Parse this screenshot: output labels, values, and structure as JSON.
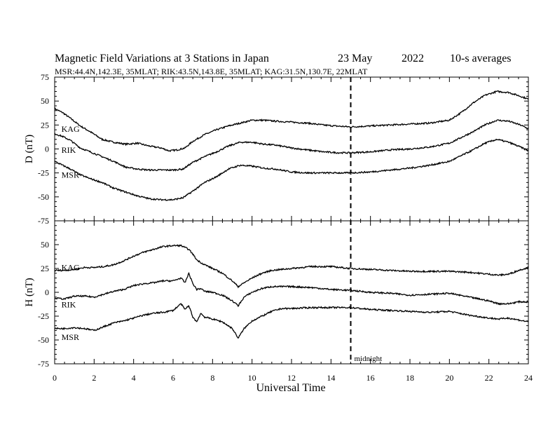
{
  "chart_data": {
    "type": "line",
    "title": "Magnetic Field Variations at 3 Stations in Japan",
    "date": "23 May",
    "year": "2022",
    "averaging": "10-s averages",
    "subtitle": "MSR:44.4N,142.3E, 35MLAT;  RIK:43.5N,143.8E, 35MLAT;  KAG:31.5N,130.7E, 22MLAT",
    "xlabel": "Universal Time",
    "xlim": [
      0,
      24
    ],
    "xticks": [
      0,
      2,
      4,
      6,
      8,
      10,
      12,
      14,
      16,
      18,
      20,
      22,
      24
    ],
    "midnight": {
      "x": 15,
      "label": "midnight"
    },
    "panels": [
      {
        "ylabel": "D (nT)",
        "ylim": [
          -75,
          75
        ],
        "yticks": [
          75,
          50,
          25,
          0,
          -25,
          -50,
          -75
        ],
        "series": [
          {
            "name": "KAG",
            "label_x": 0.2,
            "label_y": 21,
            "points": [
              [
                0,
                42
              ],
              [
                0.4,
                38
              ],
              [
                0.8,
                32
              ],
              [
                1.3,
                24
              ],
              [
                1.8,
                18
              ],
              [
                2.4,
                10
              ],
              [
                3,
                7
              ],
              [
                3.6,
                5
              ],
              [
                4.2,
                6
              ],
              [
                4.8,
                3
              ],
              [
                5.4,
                1
              ],
              [
                5.8,
                -2
              ],
              [
                6.2,
                -1
              ],
              [
                6.6,
                1
              ],
              [
                7,
                8
              ],
              [
                7.6,
                15
              ],
              [
                8.2,
                20
              ],
              [
                8.8,
                24
              ],
              [
                9.4,
                27
              ],
              [
                10,
                30
              ],
              [
                10.6,
                30
              ],
              [
                11.2,
                29
              ],
              [
                12,
                28
              ],
              [
                12.8,
                27
              ],
              [
                13.6,
                25
              ],
              [
                14.2,
                24
              ],
              [
                15,
                23
              ],
              [
                16,
                24
              ],
              [
                17,
                25
              ],
              [
                18,
                26
              ],
              [
                19,
                27
              ],
              [
                20,
                30
              ],
              [
                20.6,
                38
              ],
              [
                21.2,
                48
              ],
              [
                21.8,
                56
              ],
              [
                22.4,
                60
              ],
              [
                23,
                59
              ],
              [
                23.6,
                55
              ],
              [
                24,
                52
              ]
            ]
          },
          {
            "name": "RIK",
            "label_x": 0.2,
            "label_y": -1,
            "points": [
              [
                0,
                16
              ],
              [
                0.4,
                13
              ],
              [
                0.8,
                9
              ],
              [
                1.3,
                1
              ],
              [
                1.8,
                -3
              ],
              [
                2.4,
                -8
              ],
              [
                3,
                -13
              ],
              [
                3.6,
                -19
              ],
              [
                4.2,
                -21
              ],
              [
                4.8,
                -22
              ],
              [
                5.4,
                -22
              ],
              [
                6,
                -22
              ],
              [
                6.5,
                -21
              ],
              [
                7,
                -14
              ],
              [
                7.6,
                -8
              ],
              [
                8.2,
                -3
              ],
              [
                8.8,
                3
              ],
              [
                9.4,
                7
              ],
              [
                10,
                7
              ],
              [
                10.6,
                5
              ],
              [
                11.2,
                4
              ],
              [
                12,
                1
              ],
              [
                12.8,
                -1
              ],
              [
                13.6,
                -3
              ],
              [
                14.4,
                -4
              ],
              [
                15,
                -4
              ],
              [
                16,
                -3
              ],
              [
                17,
                -1
              ],
              [
                18,
                0
              ],
              [
                19,
                2
              ],
              [
                20,
                6
              ],
              [
                20.6,
                12
              ],
              [
                21.2,
                18
              ],
              [
                21.8,
                25
              ],
              [
                22.4,
                30
              ],
              [
                23,
                29
              ],
              [
                23.6,
                25
              ],
              [
                24,
                21
              ]
            ]
          },
          {
            "name": "MSR",
            "label_x": 0.2,
            "label_y": -27,
            "points": [
              [
                0,
                -13
              ],
              [
                0.4,
                -17
              ],
              [
                0.8,
                -21
              ],
              [
                1.3,
                -27
              ],
              [
                1.8,
                -31
              ],
              [
                2.4,
                -35
              ],
              [
                3,
                -41
              ],
              [
                3.6,
                -45
              ],
              [
                4.2,
                -49
              ],
              [
                4.8,
                -52
              ],
              [
                5.4,
                -53
              ],
              [
                6,
                -53
              ],
              [
                6.5,
                -51
              ],
              [
                7,
                -44
              ],
              [
                7.6,
                -35
              ],
              [
                8.2,
                -29
              ],
              [
                8.8,
                -21
              ],
              [
                9.4,
                -17
              ],
              [
                10,
                -18
              ],
              [
                10.6,
                -20
              ],
              [
                11.2,
                -21
              ],
              [
                12,
                -24
              ],
              [
                12.8,
                -25
              ],
              [
                13.6,
                -25
              ],
              [
                14.4,
                -25
              ],
              [
                15,
                -25
              ],
              [
                16,
                -24
              ],
              [
                17,
                -22
              ],
              [
                18,
                -20
              ],
              [
                19,
                -17
              ],
              [
                20,
                -13
              ],
              [
                20.6,
                -7
              ],
              [
                21.2,
                -1
              ],
              [
                21.8,
                6
              ],
              [
                22.4,
                10
              ],
              [
                23,
                7
              ],
              [
                23.6,
                2
              ],
              [
                24,
                -2
              ]
            ]
          }
        ]
      },
      {
        "ylabel": "H (nT)",
        "ylim": [
          -75,
          75
        ],
        "yticks": [
          50,
          25,
          0,
          -25,
          -50,
          -75
        ],
        "series": [
          {
            "name": "KAG",
            "label_x": 0.2,
            "label_y": 26,
            "points": [
              [
                0,
                23
              ],
              [
                0.5,
                23
              ],
              [
                1,
                24
              ],
              [
                1.5,
                26
              ],
              [
                2,
                26
              ],
              [
                2.5,
                27
              ],
              [
                3,
                29
              ],
              [
                3.5,
                33
              ],
              [
                4,
                38
              ],
              [
                4.5,
                42
              ],
              [
                5,
                45
              ],
              [
                5.5,
                48
              ],
              [
                6,
                49
              ],
              [
                6.4,
                49
              ],
              [
                6.8,
                45
              ],
              [
                7,
                40
              ],
              [
                7.2,
                34
              ],
              [
                7.5,
                30
              ],
              [
                8,
                25
              ],
              [
                8.5,
                20
              ],
              [
                9,
                12
              ],
              [
                9.3,
                6
              ],
              [
                9.6,
                10
              ],
              [
                10,
                15
              ],
              [
                10.5,
                20
              ],
              [
                11,
                23
              ],
              [
                11.5,
                24
              ],
              [
                12,
                25
              ],
              [
                13,
                27
              ],
              [
                14,
                27
              ],
              [
                15,
                25
              ],
              [
                16,
                24
              ],
              [
                17,
                23
              ],
              [
                18,
                22
              ],
              [
                19,
                22
              ],
              [
                20,
                22
              ],
              [
                21,
                21
              ],
              [
                22,
                19
              ],
              [
                22.5,
                18
              ],
              [
                23,
                19
              ],
              [
                23.5,
                23
              ],
              [
                24,
                26
              ]
            ]
          },
          {
            "name": "RIK",
            "label_x": 0.2,
            "label_y": -13,
            "points": [
              [
                0,
                -6
              ],
              [
                0.5,
                -7
              ],
              [
                1,
                -4
              ],
              [
                1.5,
                -4
              ],
              [
                2,
                -5
              ],
              [
                2.5,
                -2
              ],
              [
                3,
                1
              ],
              [
                3.5,
                3
              ],
              [
                4,
                7
              ],
              [
                4.5,
                9
              ],
              [
                5,
                10
              ],
              [
                5.5,
                12
              ],
              [
                6,
                12
              ],
              [
                6.4,
                15
              ],
              [
                6.6,
                10
              ],
              [
                6.8,
                20
              ],
              [
                7,
                9
              ],
              [
                7.2,
                3
              ],
              [
                7.4,
                4
              ],
              [
                7.6,
                1
              ],
              [
                8,
                0
              ],
              [
                8.5,
                -3
              ],
              [
                9,
                -9
              ],
              [
                9.3,
                -14
              ],
              [
                9.6,
                -5
              ],
              [
                10,
                0
              ],
              [
                10.5,
                4
              ],
              [
                11,
                6
              ],
              [
                12,
                6
              ],
              [
                13,
                5
              ],
              [
                14,
                3
              ],
              [
                15,
                2
              ],
              [
                16,
                0
              ],
              [
                17,
                -1
              ],
              [
                18,
                -3
              ],
              [
                19,
                -2
              ],
              [
                20,
                -1
              ],
              [
                21,
                -5
              ],
              [
                22,
                -9
              ],
              [
                22.5,
                -12
              ],
              [
                23,
                -12
              ],
              [
                23.5,
                -10
              ],
              [
                24,
                -10
              ]
            ]
          },
          {
            "name": "MSR",
            "label_x": 0.2,
            "label_y": -47,
            "points": [
              [
                0,
                -38
              ],
              [
                0.5,
                -38
              ],
              [
                1,
                -37
              ],
              [
                1.5,
                -38
              ],
              [
                2,
                -40
              ],
              [
                2.5,
                -36
              ],
              [
                3,
                -32
              ],
              [
                3.5,
                -30
              ],
              [
                4,
                -27
              ],
              [
                4.5,
                -24
              ],
              [
                5,
                -22
              ],
              [
                5.5,
                -21
              ],
              [
                6,
                -19
              ],
              [
                6.4,
                -12
              ],
              [
                6.6,
                -18
              ],
              [
                6.8,
                -14
              ],
              [
                7,
                -26
              ],
              [
                7.2,
                -31
              ],
              [
                7.4,
                -22
              ],
              [
                7.6,
                -26
              ],
              [
                8,
                -28
              ],
              [
                8.5,
                -31
              ],
              [
                9,
                -38
              ],
              [
                9.3,
                -48
              ],
              [
                9.6,
                -38
              ],
              [
                10,
                -30
              ],
              [
                10.5,
                -25
              ],
              [
                11,
                -20
              ],
              [
                11.5,
                -17
              ],
              [
                12,
                -17
              ],
              [
                13,
                -16
              ],
              [
                14,
                -16
              ],
              [
                15,
                -16
              ],
              [
                16,
                -18
              ],
              [
                17,
                -19
              ],
              [
                18,
                -20
              ],
              [
                19,
                -21
              ],
              [
                20,
                -20
              ],
              [
                21,
                -24
              ],
              [
                22,
                -27
              ],
              [
                22.5,
                -28
              ],
              [
                23,
                -27
              ],
              [
                23.5,
                -29
              ],
              [
                24,
                -31
              ]
            ]
          }
        ]
      }
    ]
  }
}
